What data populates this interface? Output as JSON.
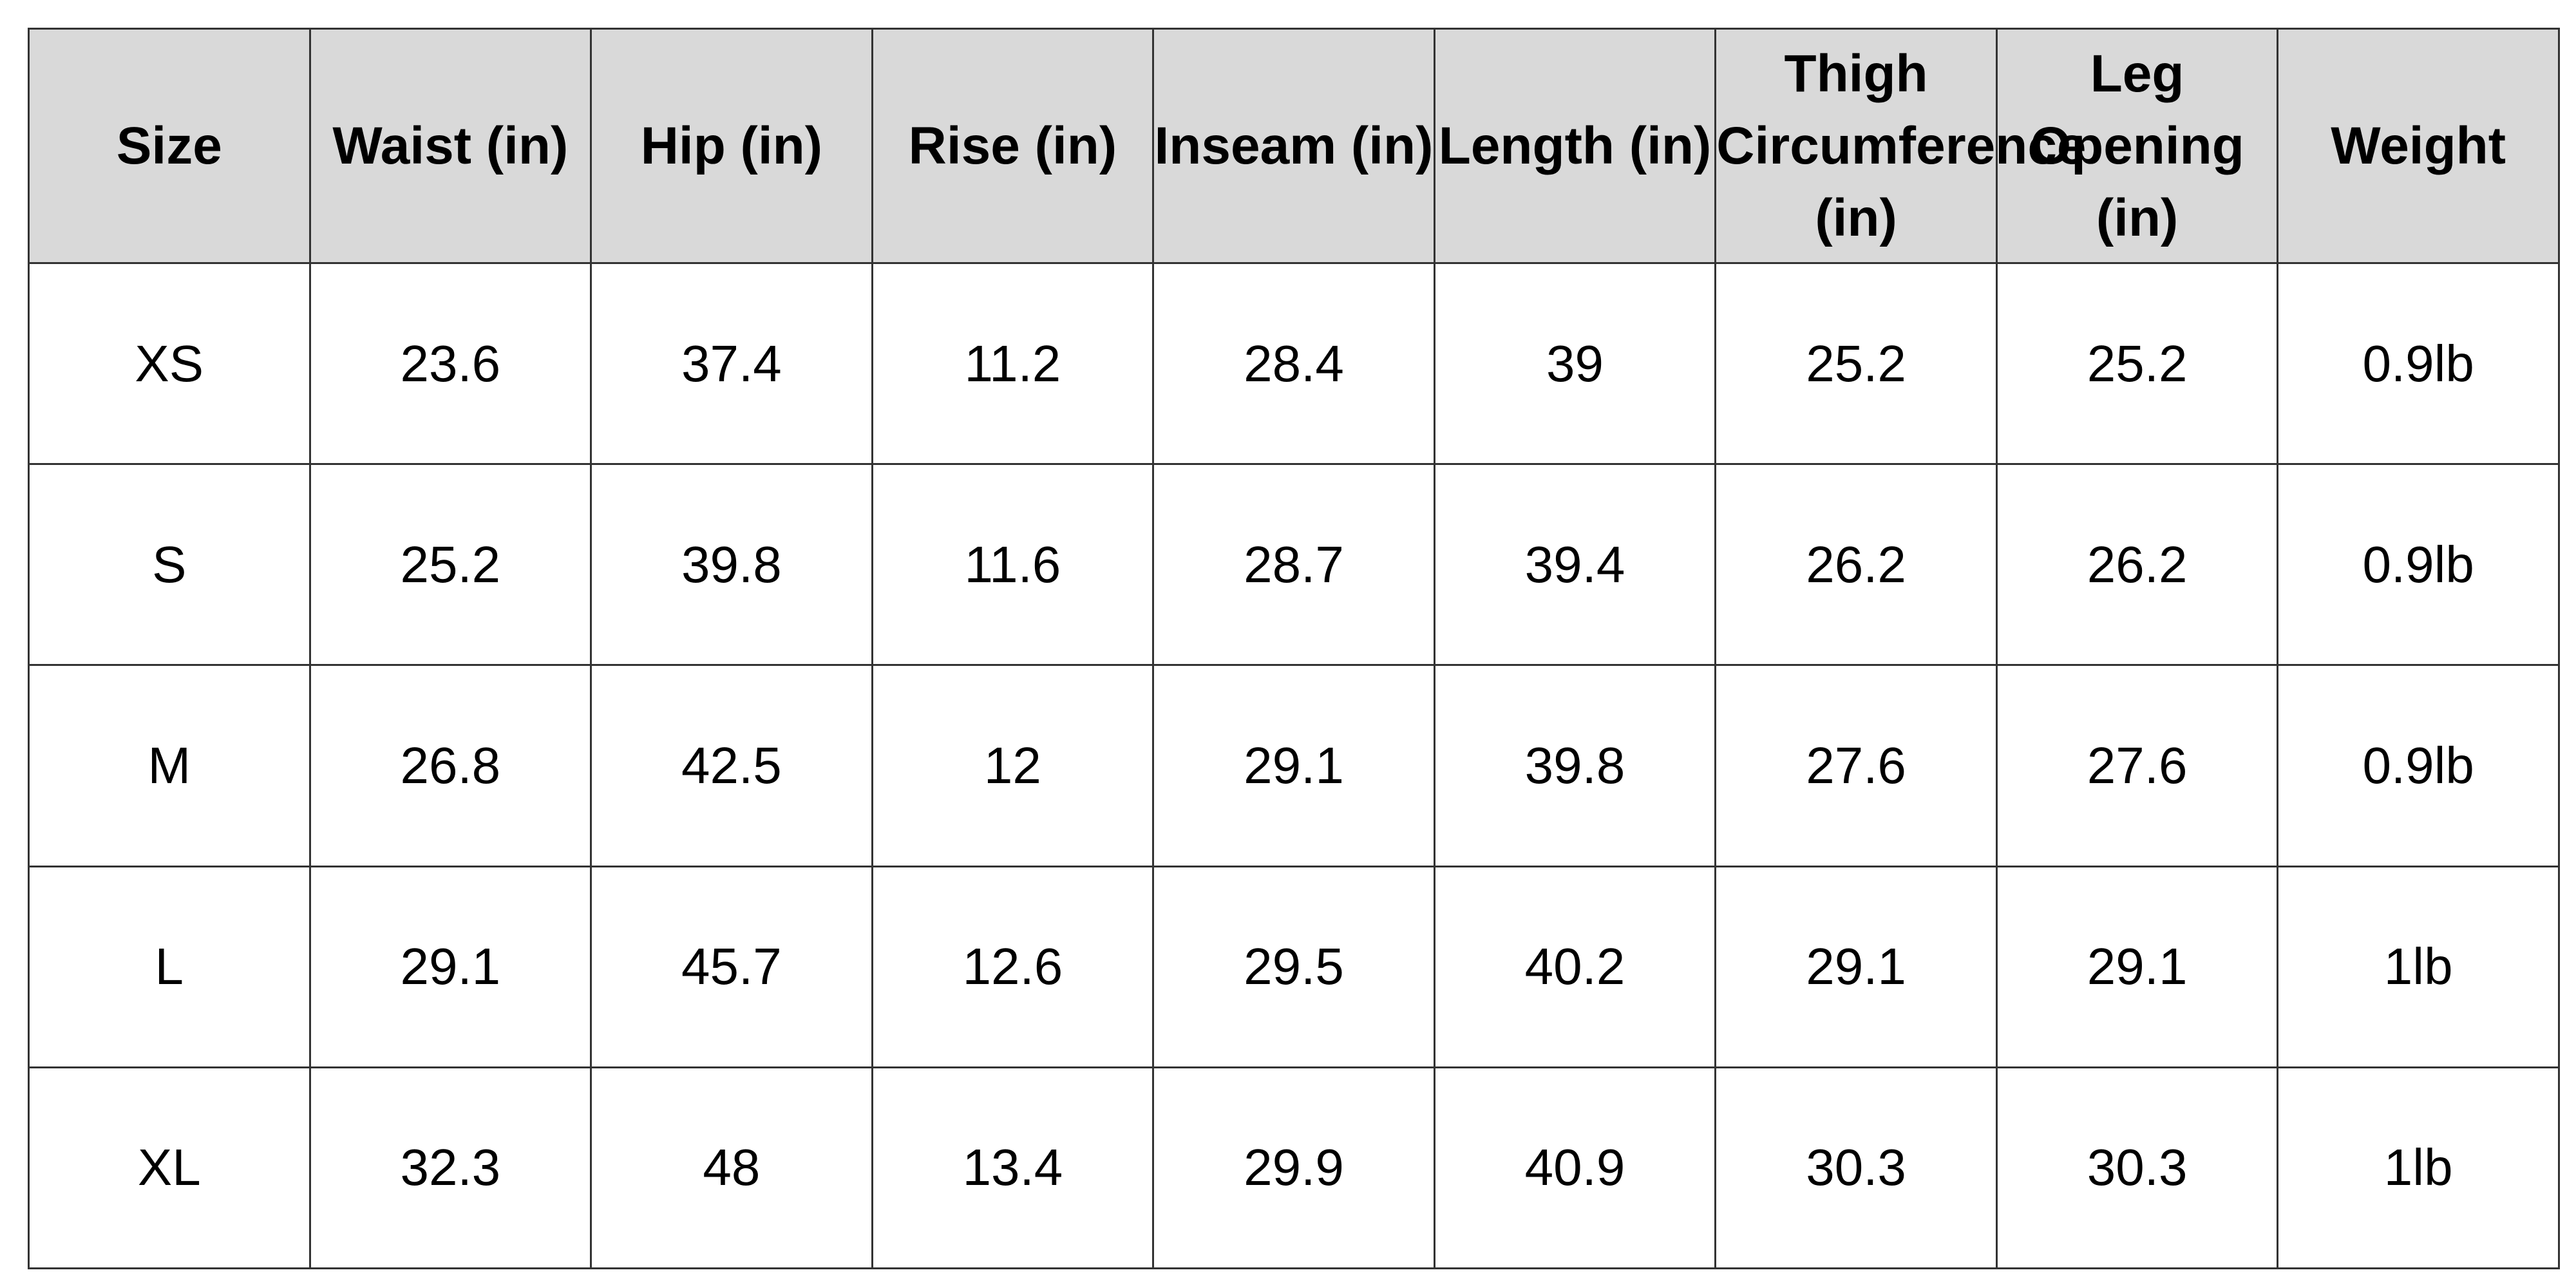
{
  "table": {
    "headers": [
      "Size",
      "Waist (in)",
      "Hip (in)",
      "Rise (in)",
      "Inseam (in)",
      "Length (in)",
      "Thigh Circumference (in)",
      "Leg Opening (in)",
      "Weight"
    ],
    "rows": [
      [
        "XS",
        "23.6",
        "37.4",
        "11.2",
        "28.4",
        "39",
        "25.2",
        "25.2",
        "0.9lb"
      ],
      [
        "S",
        "25.2",
        "39.8",
        "11.6",
        "28.7",
        "39.4",
        "26.2",
        "26.2",
        "0.9lb"
      ],
      [
        "M",
        "26.8",
        "42.5",
        "12",
        "29.1",
        "39.8",
        "27.6",
        "27.6",
        "0.9lb"
      ],
      [
        "L",
        "29.1",
        "45.7",
        "12.6",
        "29.5",
        "40.2",
        "29.1",
        "29.1",
        "1lb"
      ],
      [
        "XL",
        "32.3",
        "48",
        "13.4",
        "29.9",
        "40.9",
        "30.3",
        "30.3",
        "1lb"
      ]
    ]
  },
  "colors": {
    "header_background": "#d9d9d9",
    "cell_background": "#ffffff",
    "border": "#333333",
    "text": "#000000"
  }
}
